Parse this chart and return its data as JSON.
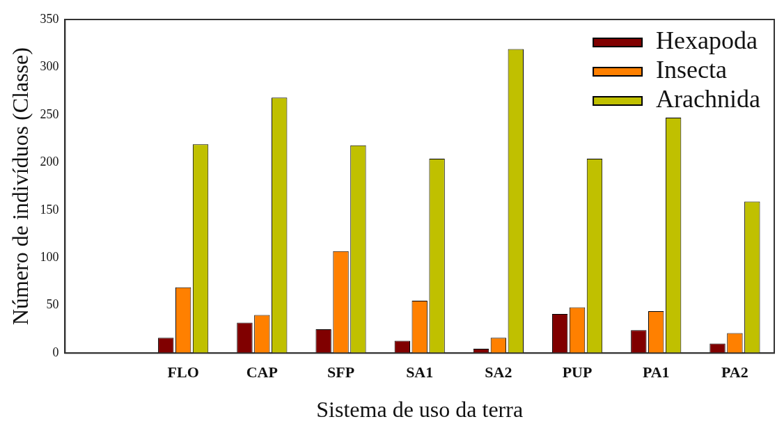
{
  "chart_data": {
    "type": "bar",
    "xlabel": "Sistema de uso da terra",
    "ylabel": "Número de indivíduos (Classe)",
    "categories": [
      null,
      "FLO",
      "CAP",
      "SFP",
      "SA1",
      "SA2",
      "PUP",
      "PA1",
      "PA2"
    ],
    "series": [
      {
        "name": "Hexapoda",
        "color": "#800000",
        "values": [
          null,
          16,
          32,
          25,
          13,
          4.5,
          41,
          24,
          10
        ]
      },
      {
        "name": "Insecta",
        "color": "#ff8000",
        "values": [
          null,
          69,
          40,
          107,
          55,
          16,
          48,
          44,
          21
        ]
      },
      {
        "name": "Arachnida",
        "color": "#c0c000",
        "values": [
          null,
          219,
          268,
          218,
          204,
          319,
          204,
          247,
          159
        ]
      }
    ],
    "ylim": [
      0,
      350
    ],
    "yticks": [
      0,
      50,
      100,
      150,
      200,
      250,
      300,
      350
    ],
    "grid": false,
    "legend": "top right"
  }
}
